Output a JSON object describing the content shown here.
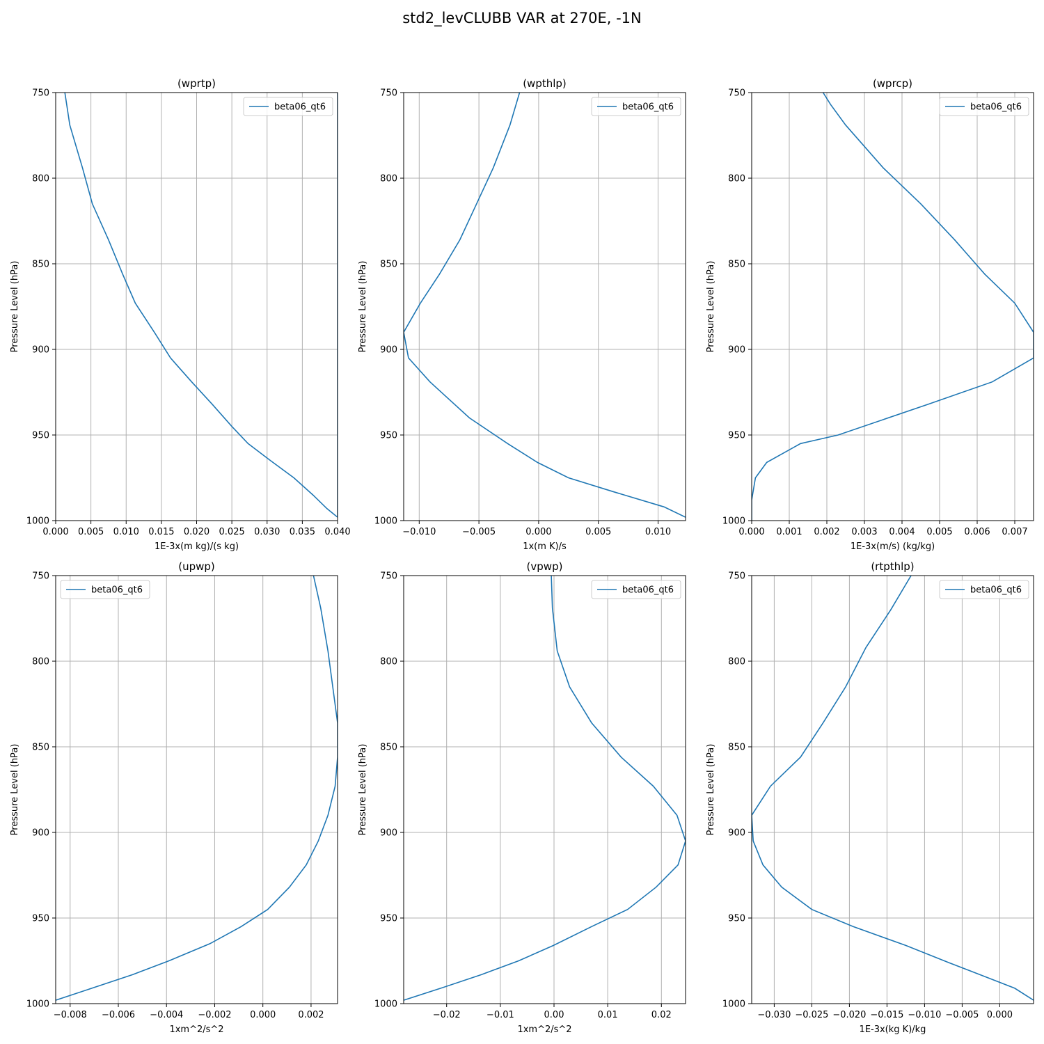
{
  "figure": {
    "title": "std2_levCLUBB VAR at 270E, -1N"
  },
  "colors": {
    "line": "#1f77b4",
    "grid": "#b0b0b0",
    "axes": "#000000"
  },
  "chart_data": [
    {
      "type": "line",
      "title": "(wprtp)",
      "xlabel": "1E-3x(m kg)/(s kg)",
      "ylabel": "Pressure Level (hPa)",
      "xlim": [
        0,
        0.04
      ],
      "ylim": [
        1000,
        750
      ],
      "xticks": [
        0,
        0.005,
        0.01,
        0.015,
        0.02,
        0.025,
        0.03,
        0.035,
        0.04
      ],
      "xtick_labels": [
        "0.000",
        "0.005",
        "0.010",
        "0.015",
        "0.020",
        "0.025",
        "0.030",
        "0.035",
        "0.040"
      ],
      "yticks": [
        750,
        800,
        850,
        900,
        950,
        1000
      ],
      "ytick_labels": [
        "750",
        "800",
        "850",
        "900",
        "950",
        "1000"
      ],
      "grid": true,
      "legend_position": "upper-right",
      "series": [
        {
          "name": "beta06_qt6",
          "x": [
            0.0013,
            0.002,
            0.0038,
            0.0052,
            0.0075,
            0.0095,
            0.0113,
            0.014,
            0.0163,
            0.0193,
            0.0222,
            0.025,
            0.0273,
            0.0305,
            0.0338,
            0.0365,
            0.0385,
            0.04,
            0.04,
            0.04
          ],
          "y": [
            750,
            769,
            794,
            815,
            836,
            856,
            873,
            890,
            905,
            919,
            932,
            945,
            955,
            965,
            975,
            985,
            993,
            998,
            870,
            750
          ]
        }
      ]
    },
    {
      "type": "line",
      "title": "(wpthlp)",
      "xlabel": "1x(m K)/s",
      "ylabel": "Pressure Level (hPa)",
      "xlim": [
        -0.0113,
        0.0123
      ],
      "ylim": [
        1000,
        750
      ],
      "xticks": [
        -0.01,
        -0.005,
        0,
        0.005,
        0.01
      ],
      "xtick_labels": [
        "−0.010",
        "−0.005",
        "0.000",
        "0.005",
        "0.010"
      ],
      "yticks": [
        750,
        800,
        850,
        900,
        950,
        1000
      ],
      "ytick_labels": [
        "750",
        "800",
        "850",
        "900",
        "950",
        "1000"
      ],
      "grid": true,
      "legend_position": "upper-right",
      "series": [
        {
          "name": "beta06_qt6",
          "x": [
            -0.0016,
            -0.0024,
            -0.0038,
            -0.0052,
            -0.0066,
            -0.0083,
            -0.0099,
            -0.0113,
            -0.0109,
            -0.0091,
            -0.0058,
            -0.0026,
            -0.0001,
            0.0025,
            0.0062,
            0.0105,
            0.0123
          ],
          "y": [
            750,
            769,
            794,
            815,
            836,
            856,
            873,
            890,
            905,
            919,
            940,
            955,
            966,
            975,
            983,
            992,
            998
          ]
        }
      ]
    },
    {
      "type": "line",
      "title": "(wprcp)",
      "xlabel": "1E-3x(m/s) (kg/kg)",
      "ylabel": "Pressure Level (hPa)",
      "xlim": [
        0,
        0.0075
      ],
      "ylim": [
        1000,
        750
      ],
      "xticks": [
        0,
        0.001,
        0.002,
        0.003,
        0.004,
        0.005,
        0.006,
        0.007
      ],
      "xtick_labels": [
        "0.000",
        "0.001",
        "0.002",
        "0.003",
        "0.004",
        "0.005",
        "0.006",
        "0.007"
      ],
      "yticks": [
        750,
        800,
        850,
        900,
        950,
        1000
      ],
      "ytick_labels": [
        "750",
        "800",
        "850",
        "900",
        "950",
        "1000"
      ],
      "grid": true,
      "legend_position": "upper-right",
      "series": [
        {
          "name": "beta06_qt6",
          "x": [
            0.0019,
            0.0021,
            0.0025,
            0.0035,
            0.0045,
            0.0054,
            0.0062,
            0.007,
            0.0075,
            0.0075,
            0.0064,
            0.0047,
            0.0023,
            0.0013,
            0.0004,
            0.0001,
            0.0,
            0.0
          ],
          "y": [
            750,
            757,
            769,
            794,
            815,
            836,
            856,
            873,
            890,
            905,
            919,
            932,
            950,
            955,
            966,
            975,
            988,
            1000
          ]
        }
      ]
    },
    {
      "type": "line",
      "title": "(upwp)",
      "xlabel": "1xm^2/s^2",
      "ylabel": "Pressure Level (hPa)",
      "xlim": [
        -0.0086,
        0.0031
      ],
      "ylim": [
        1000,
        750
      ],
      "xticks": [
        -0.008,
        -0.006,
        -0.004,
        -0.002,
        0,
        0.002
      ],
      "xtick_labels": [
        "−0.008",
        "−0.006",
        "−0.004",
        "−0.002",
        "0.000",
        "0.002"
      ],
      "yticks": [
        750,
        800,
        850,
        900,
        950,
        1000
      ],
      "ytick_labels": [
        "750",
        "800",
        "850",
        "900",
        "950",
        "1000"
      ],
      "grid": true,
      "legend_position": "upper-left",
      "series": [
        {
          "name": "beta06_qt6",
          "x": [
            0.0021,
            0.0024,
            0.0027,
            0.0029,
            0.0031,
            0.0031,
            0.003,
            0.0027,
            0.0023,
            0.0018,
            0.0011,
            0.0002,
            -0.0009,
            -0.0022,
            -0.0039,
            -0.0054,
            -0.0071,
            -0.0086
          ],
          "y": [
            750,
            769,
            794,
            815,
            836,
            856,
            873,
            890,
            905,
            919,
            932,
            945,
            955,
            965,
            975,
            983,
            991,
            998
          ]
        }
      ]
    },
    {
      "type": "line",
      "title": "(vpwp)",
      "xlabel": "1xm^2/s^2",
      "ylabel": "Pressure Level (hPa)",
      "xlim": [
        -0.028,
        0.0245
      ],
      "ylim": [
        1000,
        750
      ],
      "xticks": [
        -0.02,
        -0.01,
        0,
        0.01,
        0.02
      ],
      "xtick_labels": [
        "−0.02",
        "−0.01",
        "0.00",
        "0.01",
        "0.02"
      ],
      "yticks": [
        750,
        800,
        850,
        900,
        950,
        1000
      ],
      "ytick_labels": [
        "750",
        "800",
        "850",
        "900",
        "950",
        "1000"
      ],
      "grid": true,
      "legend_position": "upper-right",
      "series": [
        {
          "name": "beta06_qt6",
          "x": [
            -0.0005,
            -0.0003,
            0.0006,
            0.0029,
            0.007,
            0.0125,
            0.0185,
            0.0229,
            0.0245,
            0.0231,
            0.019,
            0.0137,
            0.007,
            -0.0001,
            -0.0066,
            -0.0135,
            -0.0211,
            -0.028
          ],
          "y": [
            750,
            769,
            794,
            815,
            836,
            856,
            873,
            890,
            905,
            919,
            932,
            945,
            955,
            966,
            975,
            983,
            991,
            998
          ]
        }
      ]
    },
    {
      "type": "line",
      "title": "(rtpthlp)",
      "xlabel": "1E-3x(kg K)/kg",
      "ylabel": "Pressure Level (hPa)",
      "xlim": [
        -0.033,
        0.0045
      ],
      "ylim": [
        1000,
        750
      ],
      "xticks": [
        -0.03,
        -0.025,
        -0.02,
        -0.015,
        -0.01,
        -0.005,
        0
      ],
      "xtick_labels": [
        "−0.030",
        "−0.025",
        "−0.020",
        "−0.015",
        "−0.010",
        "−0.005",
        "0.000"
      ],
      "yticks": [
        750,
        800,
        850,
        900,
        950,
        1000
      ],
      "ytick_labels": [
        "750",
        "800",
        "850",
        "900",
        "950",
        "1000"
      ],
      "grid": true,
      "legend_position": "upper-right",
      "series": [
        {
          "name": "beta06_qt6",
          "x": [
            -0.0118,
            -0.0145,
            -0.0178,
            -0.0205,
            -0.0235,
            -0.0265,
            -0.0305,
            -0.033,
            -0.0328,
            -0.0315,
            -0.029,
            -0.025,
            -0.0195,
            -0.0125,
            -0.0068,
            -0.0015,
            0.002,
            0.0045
          ],
          "y": [
            750,
            770,
            792,
            815,
            836,
            856,
            873,
            890,
            905,
            919,
            932,
            945,
            955,
            966,
            976,
            985,
            991,
            998
          ]
        }
      ]
    }
  ]
}
